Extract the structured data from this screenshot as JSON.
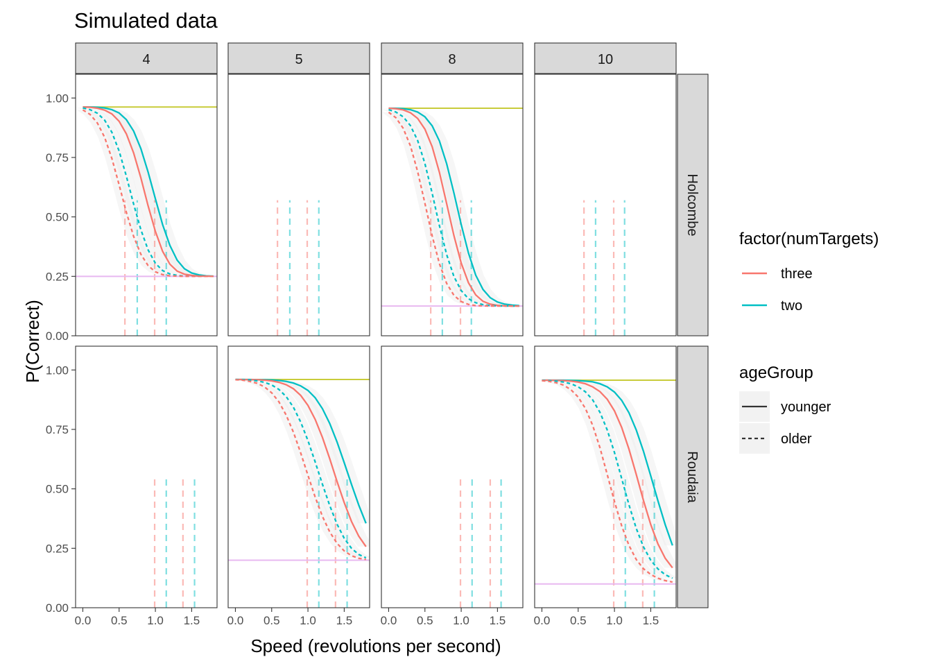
{
  "chart_data": {
    "type": "line",
    "title": "Simulated data",
    "xlabel": "Speed (revolutions per second)",
    "ylabel": "P(Correct)",
    "xlim": [
      -0.1,
      1.85
    ],
    "ylim": [
      0,
      1.1
    ],
    "x_ticks": [
      "0.0",
      "0.5",
      "1.0",
      "1.5"
    ],
    "y_ticks": [
      "0.00",
      "0.25",
      "0.50",
      "0.75",
      "1.00"
    ],
    "grid": false,
    "facet_columns": [
      "4",
      "5",
      "8",
      "10"
    ],
    "facet_rows": [
      "Holcombe",
      "Roudaia"
    ],
    "colors": {
      "three": "#F8766D",
      "two": "#00BFC4",
      "lapse_line": "#C8CC3A",
      "chance_line": "#E8B8F0",
      "ribbon": "#EBEBEB",
      "strip": "#D9D9D9"
    },
    "legends": [
      {
        "title": "factor(numTargets)",
        "placement": "right",
        "entries": [
          {
            "label": "three",
            "color": "#F8766D"
          },
          {
            "label": "two",
            "color": "#00BFC4"
          }
        ]
      },
      {
        "title": "ageGroup",
        "placement": "right",
        "entries": [
          {
            "label": "younger",
            "linetype": "solid"
          },
          {
            "label": "older",
            "linetype": "dashed"
          }
        ]
      }
    ],
    "x_grid": [
      0.0,
      0.1,
      0.2,
      0.3,
      0.4,
      0.5,
      0.6,
      0.7,
      0.8,
      0.9,
      1.0,
      1.1,
      1.2,
      1.3,
      1.4,
      1.5,
      1.6,
      1.7,
      1.8
    ],
    "panels": [
      {
        "row": "Holcombe",
        "column": "4",
        "lapse": 0.962,
        "chance": 0.25,
        "threshold_lines": [
          0.58,
          0.75,
          0.99,
          1.15
        ],
        "threshold_top": 0.57,
        "series": [
          {
            "numTargets": "two",
            "ageGroup": "younger",
            "y": [
              0.962,
              0.962,
              0.961,
              0.958,
              0.951,
              0.937,
              0.909,
              0.861,
              0.787,
              0.688,
              0.576,
              0.467,
              0.38,
              0.318,
              0.282,
              0.264,
              0.256,
              0.252,
              0.251
            ]
          },
          {
            "numTargets": "three",
            "ageGroup": "younger",
            "y": [
              0.962,
              0.961,
              0.957,
              0.949,
              0.933,
              0.902,
              0.849,
              0.769,
              0.664,
              0.546,
              0.439,
              0.355,
              0.301,
              0.272,
              0.259,
              0.254,
              0.251,
              0.251,
              0.25
            ]
          },
          {
            "numTargets": "two",
            "ageGroup": "older",
            "y": [
              0.958,
              0.951,
              0.936,
              0.907,
              0.856,
              0.777,
              0.671,
              0.554,
              0.446,
              0.361,
              0.305,
              0.274,
              0.26,
              0.254,
              0.251,
              0.25,
              0.25,
              0.25,
              0.25
            ]
          },
          {
            "numTargets": "three",
            "ageGroup": "older",
            "y": [
              0.95,
              0.931,
              0.895,
              0.835,
              0.746,
              0.635,
              0.519,
              0.418,
              0.343,
              0.295,
              0.269,
              0.257,
              0.252,
              0.251,
              0.25,
              0.25,
              0.25,
              0.25,
              0.25
            ]
          }
        ]
      },
      {
        "row": "Holcombe",
        "column": "5",
        "lapse": null,
        "chance": null,
        "threshold_lines": [
          0.58,
          0.75,
          0.99,
          1.15
        ],
        "threshold_top": 0.57,
        "series": []
      },
      {
        "row": "Holcombe",
        "column": "8",
        "lapse": 0.957,
        "chance": 0.125,
        "threshold_lines": [
          0.58,
          0.74,
          0.99,
          1.14
        ],
        "threshold_top": 0.57,
        "series": [
          {
            "numTargets": "two",
            "ageGroup": "younger",
            "y": [
              0.957,
              0.957,
              0.955,
              0.951,
              0.941,
              0.921,
              0.883,
              0.819,
              0.723,
              0.6,
              0.468,
              0.348,
              0.255,
              0.195,
              0.16,
              0.142,
              0.133,
              0.129,
              0.127
            ]
          },
          {
            "numTargets": "three",
            "ageGroup": "younger",
            "y": [
              0.957,
              0.955,
              0.95,
              0.938,
              0.914,
              0.869,
              0.795,
              0.687,
              0.555,
              0.421,
              0.306,
              0.223,
              0.172,
              0.145,
              0.133,
              0.128,
              0.126,
              0.125,
              0.125
            ]
          },
          {
            "numTargets": "two",
            "ageGroup": "older",
            "y": [
              0.951,
              0.941,
              0.921,
              0.884,
              0.821,
              0.724,
              0.599,
              0.463,
              0.341,
              0.249,
              0.19,
              0.156,
              0.139,
              0.131,
              0.127,
              0.126,
              0.125,
              0.125,
              0.125
            ]
          },
          {
            "numTargets": "three",
            "ageGroup": "older",
            "y": [
              0.94,
              0.917,
              0.873,
              0.799,
              0.69,
              0.557,
              0.42,
              0.303,
              0.22,
              0.17,
              0.144,
              0.132,
              0.127,
              0.126,
              0.125,
              0.125,
              0.125,
              0.125,
              0.125
            ]
          }
        ]
      },
      {
        "row": "Holcombe",
        "column": "10",
        "lapse": null,
        "chance": null,
        "threshold_lines": [
          0.58,
          0.74,
          0.99,
          1.14
        ],
        "threshold_top": 0.57,
        "series": []
      },
      {
        "row": "Roudaia",
        "column": "4",
        "lapse": null,
        "chance": null,
        "threshold_lines": [
          0.99,
          1.15,
          1.38,
          1.54
        ],
        "threshold_top": 0.55,
        "series": []
      },
      {
        "row": "Roudaia",
        "column": "5",
        "lapse": 0.96,
        "chance": 0.2,
        "threshold_lines": [
          0.99,
          1.15,
          1.38,
          1.54
        ],
        "threshold_top": 0.55,
        "series": [
          {
            "numTargets": "two",
            "ageGroup": "younger",
            "y": [
              0.96,
              0.96,
              0.96,
              0.959,
              0.959,
              0.958,
              0.956,
              0.952,
              0.945,
              0.933,
              0.914,
              0.883,
              0.837,
              0.775,
              0.698,
              0.61,
              0.519,
              0.432,
              0.355
            ]
          },
          {
            "numTargets": "three",
            "ageGroup": "younger",
            "y": [
              0.96,
              0.96,
              0.959,
              0.959,
              0.957,
              0.954,
              0.948,
              0.938,
              0.921,
              0.893,
              0.851,
              0.792,
              0.716,
              0.627,
              0.532,
              0.442,
              0.363,
              0.301,
              0.257
            ]
          },
          {
            "numTargets": "two",
            "ageGroup": "older",
            "y": [
              0.96,
              0.959,
              0.958,
              0.954,
              0.948,
              0.937,
              0.918,
              0.888,
              0.843,
              0.781,
              0.703,
              0.613,
              0.519,
              0.43,
              0.352,
              0.292,
              0.25,
              0.224,
              0.21
            ]
          },
          {
            "numTargets": "three",
            "ageGroup": "older",
            "y": [
              0.959,
              0.957,
              0.952,
              0.944,
              0.929,
              0.904,
              0.866,
              0.81,
              0.738,
              0.651,
              0.557,
              0.465,
              0.384,
              0.319,
              0.271,
              0.239,
              0.219,
              0.208,
              0.203
            ]
          }
        ]
      },
      {
        "row": "Roudaia",
        "column": "8",
        "lapse": null,
        "chance": null,
        "threshold_lines": [
          0.99,
          1.15,
          1.4,
          1.55
        ],
        "threshold_top": 0.55,
        "series": []
      },
      {
        "row": "Roudaia",
        "column": "10",
        "lapse": 0.957,
        "chance": 0.1,
        "threshold_lines": [
          0.99,
          1.15,
          1.39,
          1.55
        ],
        "threshold_top": 0.55,
        "series": [
          {
            "numTargets": "two",
            "ageGroup": "younger",
            "y": [
              0.957,
              0.957,
              0.957,
              0.957,
              0.956,
              0.955,
              0.953,
              0.95,
              0.942,
              0.929,
              0.907,
              0.872,
              0.82,
              0.748,
              0.658,
              0.555,
              0.449,
              0.349,
              0.262
            ]
          },
          {
            "numTargets": "three",
            "ageGroup": "younger",
            "y": [
              0.957,
              0.957,
              0.956,
              0.955,
              0.953,
              0.949,
              0.942,
              0.929,
              0.909,
              0.877,
              0.828,
              0.758,
              0.667,
              0.561,
              0.451,
              0.35,
              0.268,
              0.208,
              0.168
            ]
          },
          {
            "numTargets": "two",
            "ageGroup": "older",
            "y": [
              0.956,
              0.955,
              0.953,
              0.949,
              0.942,
              0.929,
              0.908,
              0.874,
              0.822,
              0.748,
              0.653,
              0.543,
              0.433,
              0.334,
              0.256,
              0.2,
              0.163,
              0.139,
              0.124
            ]
          },
          {
            "numTargets": "three",
            "ageGroup": "older",
            "y": [
              0.955,
              0.952,
              0.946,
              0.936,
              0.917,
              0.886,
              0.838,
              0.767,
              0.673,
              0.561,
              0.447,
              0.344,
              0.262,
              0.203,
              0.164,
              0.14,
              0.124,
              0.114,
              0.108
            ]
          }
        ]
      }
    ]
  }
}
